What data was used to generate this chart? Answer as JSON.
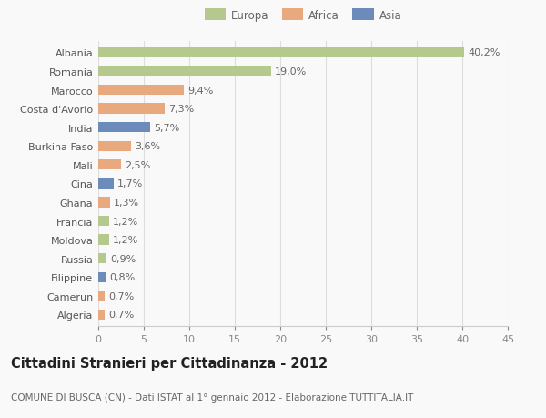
{
  "categories": [
    "Albania",
    "Romania",
    "Marocco",
    "Costa d'Avorio",
    "India",
    "Burkina Faso",
    "Mali",
    "Cina",
    "Ghana",
    "Francia",
    "Moldova",
    "Russia",
    "Filippine",
    "Camerun",
    "Algeria"
  ],
  "values": [
    40.2,
    19.0,
    9.4,
    7.3,
    5.7,
    3.6,
    2.5,
    1.7,
    1.3,
    1.2,
    1.2,
    0.9,
    0.8,
    0.7,
    0.7
  ],
  "labels": [
    "40,2%",
    "19,0%",
    "9,4%",
    "7,3%",
    "5,7%",
    "3,6%",
    "2,5%",
    "1,7%",
    "1,3%",
    "1,2%",
    "1,2%",
    "0,9%",
    "0,8%",
    "0,7%",
    "0,7%"
  ],
  "colors": [
    "#b5c98e",
    "#b5c98e",
    "#e8a97e",
    "#e8a97e",
    "#6b8cba",
    "#e8a97e",
    "#e8a97e",
    "#6b8cba",
    "#e8a97e",
    "#b5c98e",
    "#b5c98e",
    "#b5c98e",
    "#6b8cba",
    "#e8a97e",
    "#e8a97e"
  ],
  "legend": [
    {
      "label": "Europa",
      "color": "#b5c98e"
    },
    {
      "label": "Africa",
      "color": "#e8a97e"
    },
    {
      "label": "Asia",
      "color": "#6b8cba"
    }
  ],
  "title": "Cittadini Stranieri per Cittadinanza - 2012",
  "subtitle": "COMUNE DI BUSCA (CN) - Dati ISTAT al 1° gennaio 2012 - Elaborazione TUTTITALIA.IT",
  "xlim": [
    0,
    45
  ],
  "xticks": [
    0,
    5,
    10,
    15,
    20,
    25,
    30,
    35,
    40,
    45
  ],
  "background_color": "#f9f9f9",
  "grid_color": "#dddddd",
  "bar_height": 0.55,
  "label_fontsize": 8,
  "tick_fontsize": 8,
  "title_fontsize": 10.5,
  "subtitle_fontsize": 7.5
}
